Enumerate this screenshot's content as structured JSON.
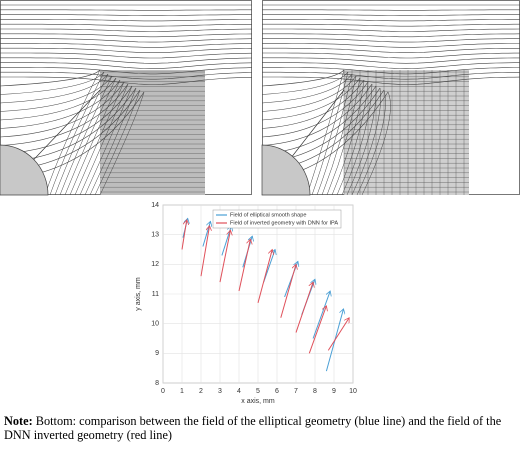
{
  "chart_data": {
    "type": "quiver",
    "xlabel": "x axis, mm",
    "ylabel": "y axis, mm",
    "xlim": [
      0,
      10
    ],
    "xticks": [
      0,
      1,
      2,
      3,
      4,
      5,
      6,
      7,
      8,
      9,
      10
    ],
    "ylim": [
      8,
      14
    ],
    "yticks": [
      8,
      9,
      10,
      11,
      12,
      13,
      14
    ],
    "grid": true,
    "legend": "top-left",
    "series": [
      {
        "name": "Field of elliptical smooth shape",
        "color": "#4a9fd5",
        "x": [
          1.05,
          2.1,
          3.1,
          4.2,
          5.3,
          6.4,
          7.3,
          7.9,
          8.6
        ],
        "y": [
          12.9,
          12.6,
          12.3,
          11.9,
          11.4,
          10.9,
          10.3,
          9.5,
          8.4
        ],
        "x2": [
          1.3,
          2.5,
          3.6,
          4.7,
          5.9,
          7.1,
          8.0,
          8.8,
          9.5
        ],
        "y2": [
          13.55,
          13.45,
          13.3,
          12.95,
          12.5,
          12.1,
          11.5,
          11.1,
          10.5
        ]
      },
      {
        "name": "Field of inverted geometry with DNN for IPA",
        "color": "#e0505a",
        "x": [
          1.0,
          2.0,
          3.0,
          4.0,
          5.0,
          6.2,
          7.0,
          7.7,
          8.7
        ],
        "y": [
          12.5,
          11.6,
          11.4,
          11.1,
          10.7,
          10.2,
          9.7,
          9.0,
          9.1
        ],
        "x2": [
          1.25,
          2.45,
          3.55,
          4.6,
          5.75,
          7.0,
          7.9,
          8.6,
          9.8
        ],
        "y2": [
          13.5,
          13.3,
          13.15,
          12.85,
          12.5,
          12.0,
          11.4,
          10.6,
          10.2
        ]
      }
    ]
  },
  "note": {
    "label": "Note:",
    "text": "Bottom: comparison between the field of the elliptical geometry (blue line) and the field of the DNN inverted geometry (red line)"
  }
}
